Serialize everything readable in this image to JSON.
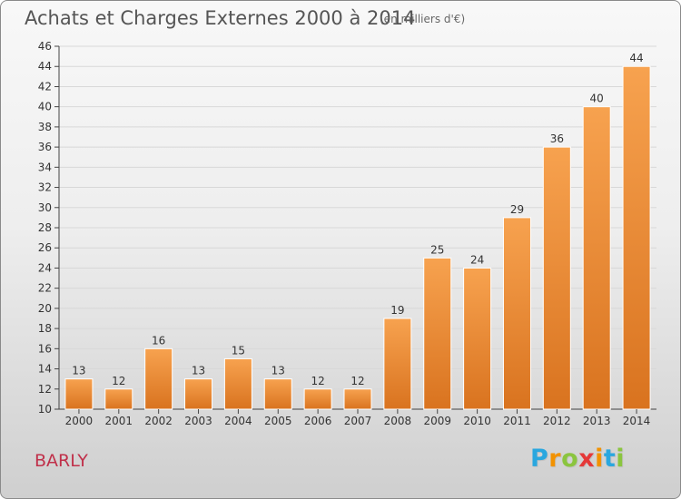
{
  "header": {
    "title": "Achats et Charges Externes 2000 à 2014",
    "unit_label": "(en milliers d'€)"
  },
  "footer": {
    "commune": "BARLY",
    "brand": "Proxiti"
  },
  "colors": {
    "bar_top": "#f7a24f",
    "bar_bottom": "#d9731f",
    "grid": "#d8d8d8",
    "axis": "#444444",
    "commune": "#c0304a",
    "brand_letters": [
      "#2aa7df",
      "#f29200",
      "#8bc53f",
      "#e53939",
      "#f29200",
      "#2aa7df",
      "#8bc53f"
    ]
  },
  "chart_data": {
    "type": "bar",
    "title": "Achats et Charges Externes 2000 à 2014",
    "subtitle": "(en milliers d'€)",
    "xlabel": "",
    "ylabel": "",
    "categories": [
      "2000",
      "2001",
      "2002",
      "2003",
      "2004",
      "2005",
      "2006",
      "2007",
      "2008",
      "2009",
      "2010",
      "2011",
      "2012",
      "2013",
      "2014"
    ],
    "values": [
      13,
      12,
      16,
      13,
      15,
      13,
      12,
      12,
      19,
      25,
      24,
      29,
      36,
      40,
      44
    ],
    "ylim": [
      10,
      46
    ],
    "yticks": [
      10,
      12,
      14,
      16,
      18,
      20,
      22,
      24,
      26,
      28,
      30,
      32,
      34,
      36,
      38,
      40,
      42,
      44,
      46
    ],
    "grid": true,
    "legend": "none"
  }
}
